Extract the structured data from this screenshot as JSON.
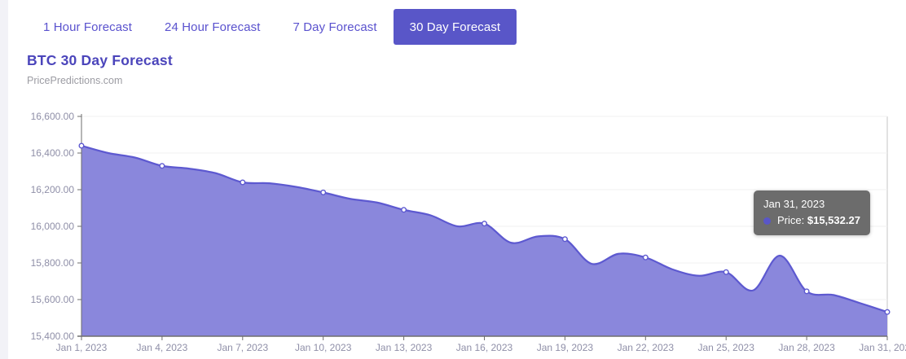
{
  "tabs": [
    {
      "label": "1 Hour Forecast",
      "active": false
    },
    {
      "label": "24 Hour Forecast",
      "active": false
    },
    {
      "label": "7 Day Forecast",
      "active": false
    },
    {
      "label": "30 Day Forecast",
      "active": true
    }
  ],
  "header": {
    "title": "BTC 30 Day Forecast",
    "source": "PricePredictions.com"
  },
  "tooltip": {
    "date": "Jan 31, 2023",
    "label": "Price:",
    "value": "$15,532.27"
  },
  "chart_data": {
    "type": "area",
    "title": "BTC 30 Day Forecast",
    "series_name": "Price",
    "x": [
      "Jan 1, 2023",
      "Jan 2, 2023",
      "Jan 3, 2023",
      "Jan 4, 2023",
      "Jan 5, 2023",
      "Jan 6, 2023",
      "Jan 7, 2023",
      "Jan 8, 2023",
      "Jan 9, 2023",
      "Jan 10, 2023",
      "Jan 11, 2023",
      "Jan 12, 2023",
      "Jan 13, 2023",
      "Jan 14, 2023",
      "Jan 15, 2023",
      "Jan 16, 2023",
      "Jan 17, 2023",
      "Jan 18, 2023",
      "Jan 19, 2023",
      "Jan 20, 2023",
      "Jan 21, 2023",
      "Jan 22, 2023",
      "Jan 23, 2023",
      "Jan 24, 2023",
      "Jan 25, 2023",
      "Jan 26, 2023",
      "Jan 27, 2023",
      "Jan 28, 2023",
      "Jan 29, 2023",
      "Jan 30, 2023",
      "Jan 31, 2023"
    ],
    "values": [
      16440,
      16400,
      16375,
      16330,
      16315,
      16290,
      16240,
      16235,
      16215,
      16185,
      16150,
      16130,
      16090,
      16060,
      16000,
      16015,
      15910,
      15945,
      15930,
      15795,
      15850,
      15830,
      15765,
      15730,
      15750,
      15650,
      15840,
      15645,
      15625,
      15580,
      15532.27
    ],
    "ylim": [
      15400,
      16600
    ],
    "y_ticks": [
      15400,
      15600,
      15800,
      16000,
      16200,
      16400,
      16600
    ],
    "y_tick_labels": [
      "15,400.00",
      "15,600.00",
      "15,800.00",
      "16,000.00",
      "16,200.00",
      "16,400.00",
      "16,600.00"
    ],
    "x_tick_indices": [
      0,
      3,
      6,
      9,
      12,
      15,
      18,
      21,
      24,
      27,
      30
    ],
    "marker_indices": [
      0,
      3,
      6,
      9,
      12,
      15,
      18,
      21,
      24,
      27,
      30
    ],
    "grid": "horizontal",
    "legend": "none"
  },
  "colors": {
    "accent": "#5956c8",
    "tab_text": "#5a52ce",
    "title": "#4b45bb",
    "area_fill": "#8a87dc",
    "line": "#5d59d0",
    "axis_text": "#8f8fa8",
    "grid_line": "#f0f0f0",
    "axis_line": "#6e6e6e",
    "right_line": "#d6d6d6",
    "tooltip_bg": "#6c6c6c",
    "marker_fill": "#ffffff"
  }
}
